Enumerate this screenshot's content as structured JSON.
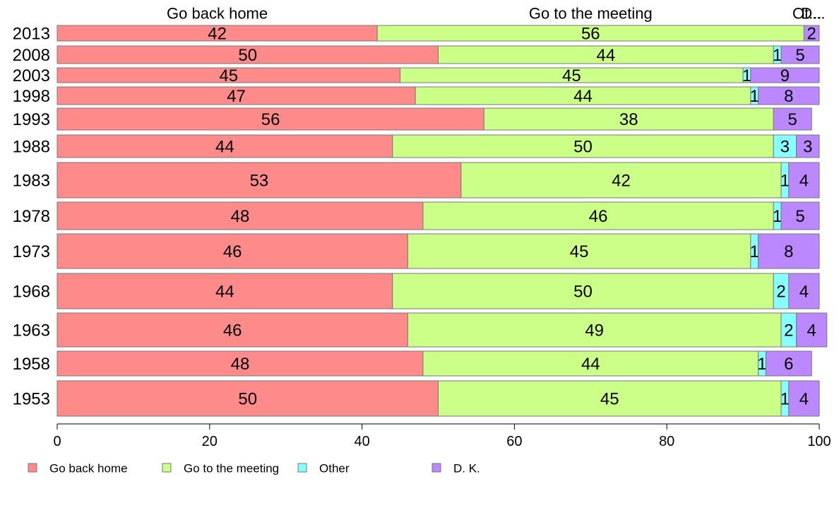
{
  "chart_data": {
    "type": "bar",
    "orientation": "horizontal",
    "stacked": true,
    "categories": [
      "2013",
      "2008",
      "2003",
      "1998",
      "1993",
      "1988",
      "1983",
      "1978",
      "1973",
      "1968",
      "1963",
      "1958",
      "1953"
    ],
    "series": [
      {
        "name": "Go back home",
        "color": "#ff8a8a",
        "values": [
          42,
          50,
          45,
          47,
          56,
          44,
          53,
          48,
          46,
          44,
          46,
          48,
          50
        ]
      },
      {
        "name": "Go to the meeting",
        "color": "#ccff88",
        "values": [
          56,
          44,
          45,
          44,
          38,
          50,
          42,
          46,
          45,
          50,
          49,
          44,
          45
        ]
      },
      {
        "name": "Other",
        "color": "#88ffff",
        "values": [
          0,
          1,
          1,
          1,
          0,
          3,
          1,
          1,
          1,
          2,
          2,
          1,
          1
        ]
      },
      {
        "name": "D. K.",
        "color": "#bb88ff",
        "values": [
          2,
          5,
          9,
          8,
          5,
          3,
          4,
          5,
          8,
          4,
          4,
          6,
          4
        ]
      }
    ],
    "top_labels": [
      "Go back home",
      "Go to the meeting",
      "Ot...",
      "D..."
    ],
    "xlim": [
      0,
      100
    ],
    "xticks": [
      "0",
      "20",
      "40",
      "60",
      "80",
      "100"
    ],
    "legend_position": "bottom",
    "grid": false
  }
}
